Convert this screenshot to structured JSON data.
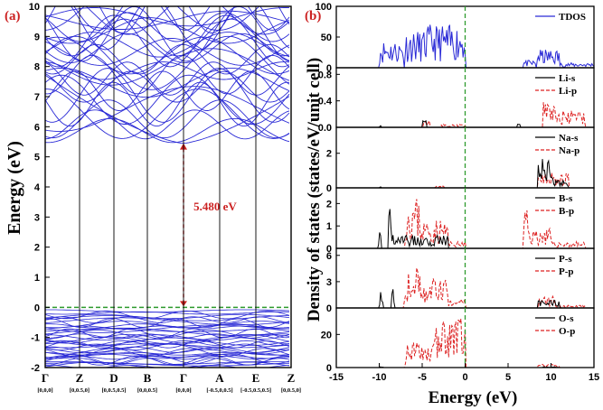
{
  "chart_data": [
    {
      "panel_label": "(a)",
      "type": "line",
      "ylabel": "Energy (eV)",
      "ylim": [
        -2,
        10
      ],
      "yticks": [
        "-2",
        "-1",
        "0",
        "1",
        "2",
        "3",
        "4",
        "5",
        "6",
        "7",
        "8",
        "9",
        "10"
      ],
      "kpoints": [
        {
          "label": "Γ",
          "coord": "[0,0,0]"
        },
        {
          "label": "Z",
          "coord": "[0,0.5,0]"
        },
        {
          "label": "D",
          "coord": "[0,0.5,0.5]"
        },
        {
          "label": "B",
          "coord": "[0,0,0.5]"
        },
        {
          "label": "Γ",
          "coord": "[0,0,0]"
        },
        {
          "label": "A",
          "coord": "[-0.5,0,0.5]"
        },
        {
          "label": "E",
          "coord": "[-0.5,0.5,0.5]"
        },
        {
          "label": "Z",
          "coord": "[0,0.5,0]"
        }
      ],
      "band_gap_label": "5.480 eV",
      "band_gap": 5.48,
      "fermi_level": 0,
      "colors": {
        "bands": "#2a2ad6",
        "fermi": "#2e9b2e",
        "gap_arrow": "#cc2222"
      }
    },
    {
      "panel_label": "(b)",
      "type": "line",
      "xlabel": "Energy (eV)",
      "ylabel": "Density of states (states/eV/unit cell)",
      "xlim": [
        -15,
        15
      ],
      "xticks": [
        "-15",
        "-10",
        "-5",
        "0",
        "5",
        "10",
        "15"
      ],
      "fermi_level": 0,
      "subplots": [
        {
          "legend": [
            "TDOS"
          ],
          "yticks": [
            "0",
            "50",
            "100"
          ],
          "ylim": [
            0,
            100
          ]
        },
        {
          "legend": [
            "Li-s",
            "Li-p"
          ],
          "yticks": [
            "0.0",
            "0.4",
            "0.8"
          ],
          "ylim": [
            0,
            0.9
          ]
        },
        {
          "legend": [
            "Na-s",
            "Na-p"
          ],
          "yticks": [
            "0",
            "2"
          ],
          "ylim": [
            0,
            3.5
          ]
        },
        {
          "legend": [
            "B-s",
            "B-p"
          ],
          "yticks": [
            "0",
            "1",
            "2"
          ],
          "ylim": [
            0,
            2.7
          ]
        },
        {
          "legend": [
            "P-s",
            "P-p"
          ],
          "yticks": [
            "0",
            "3",
            "6"
          ],
          "ylim": [
            0,
            6.8
          ]
        },
        {
          "legend": [
            "O-s",
            "O-p"
          ],
          "yticks": [
            "0",
            "20"
          ],
          "ylim": [
            0,
            36
          ]
        }
      ],
      "colors": {
        "tdos": "#2a2ad6",
        "s": "#000000",
        "p": "#dd2222",
        "fermi": "#2e9b2e"
      }
    }
  ]
}
